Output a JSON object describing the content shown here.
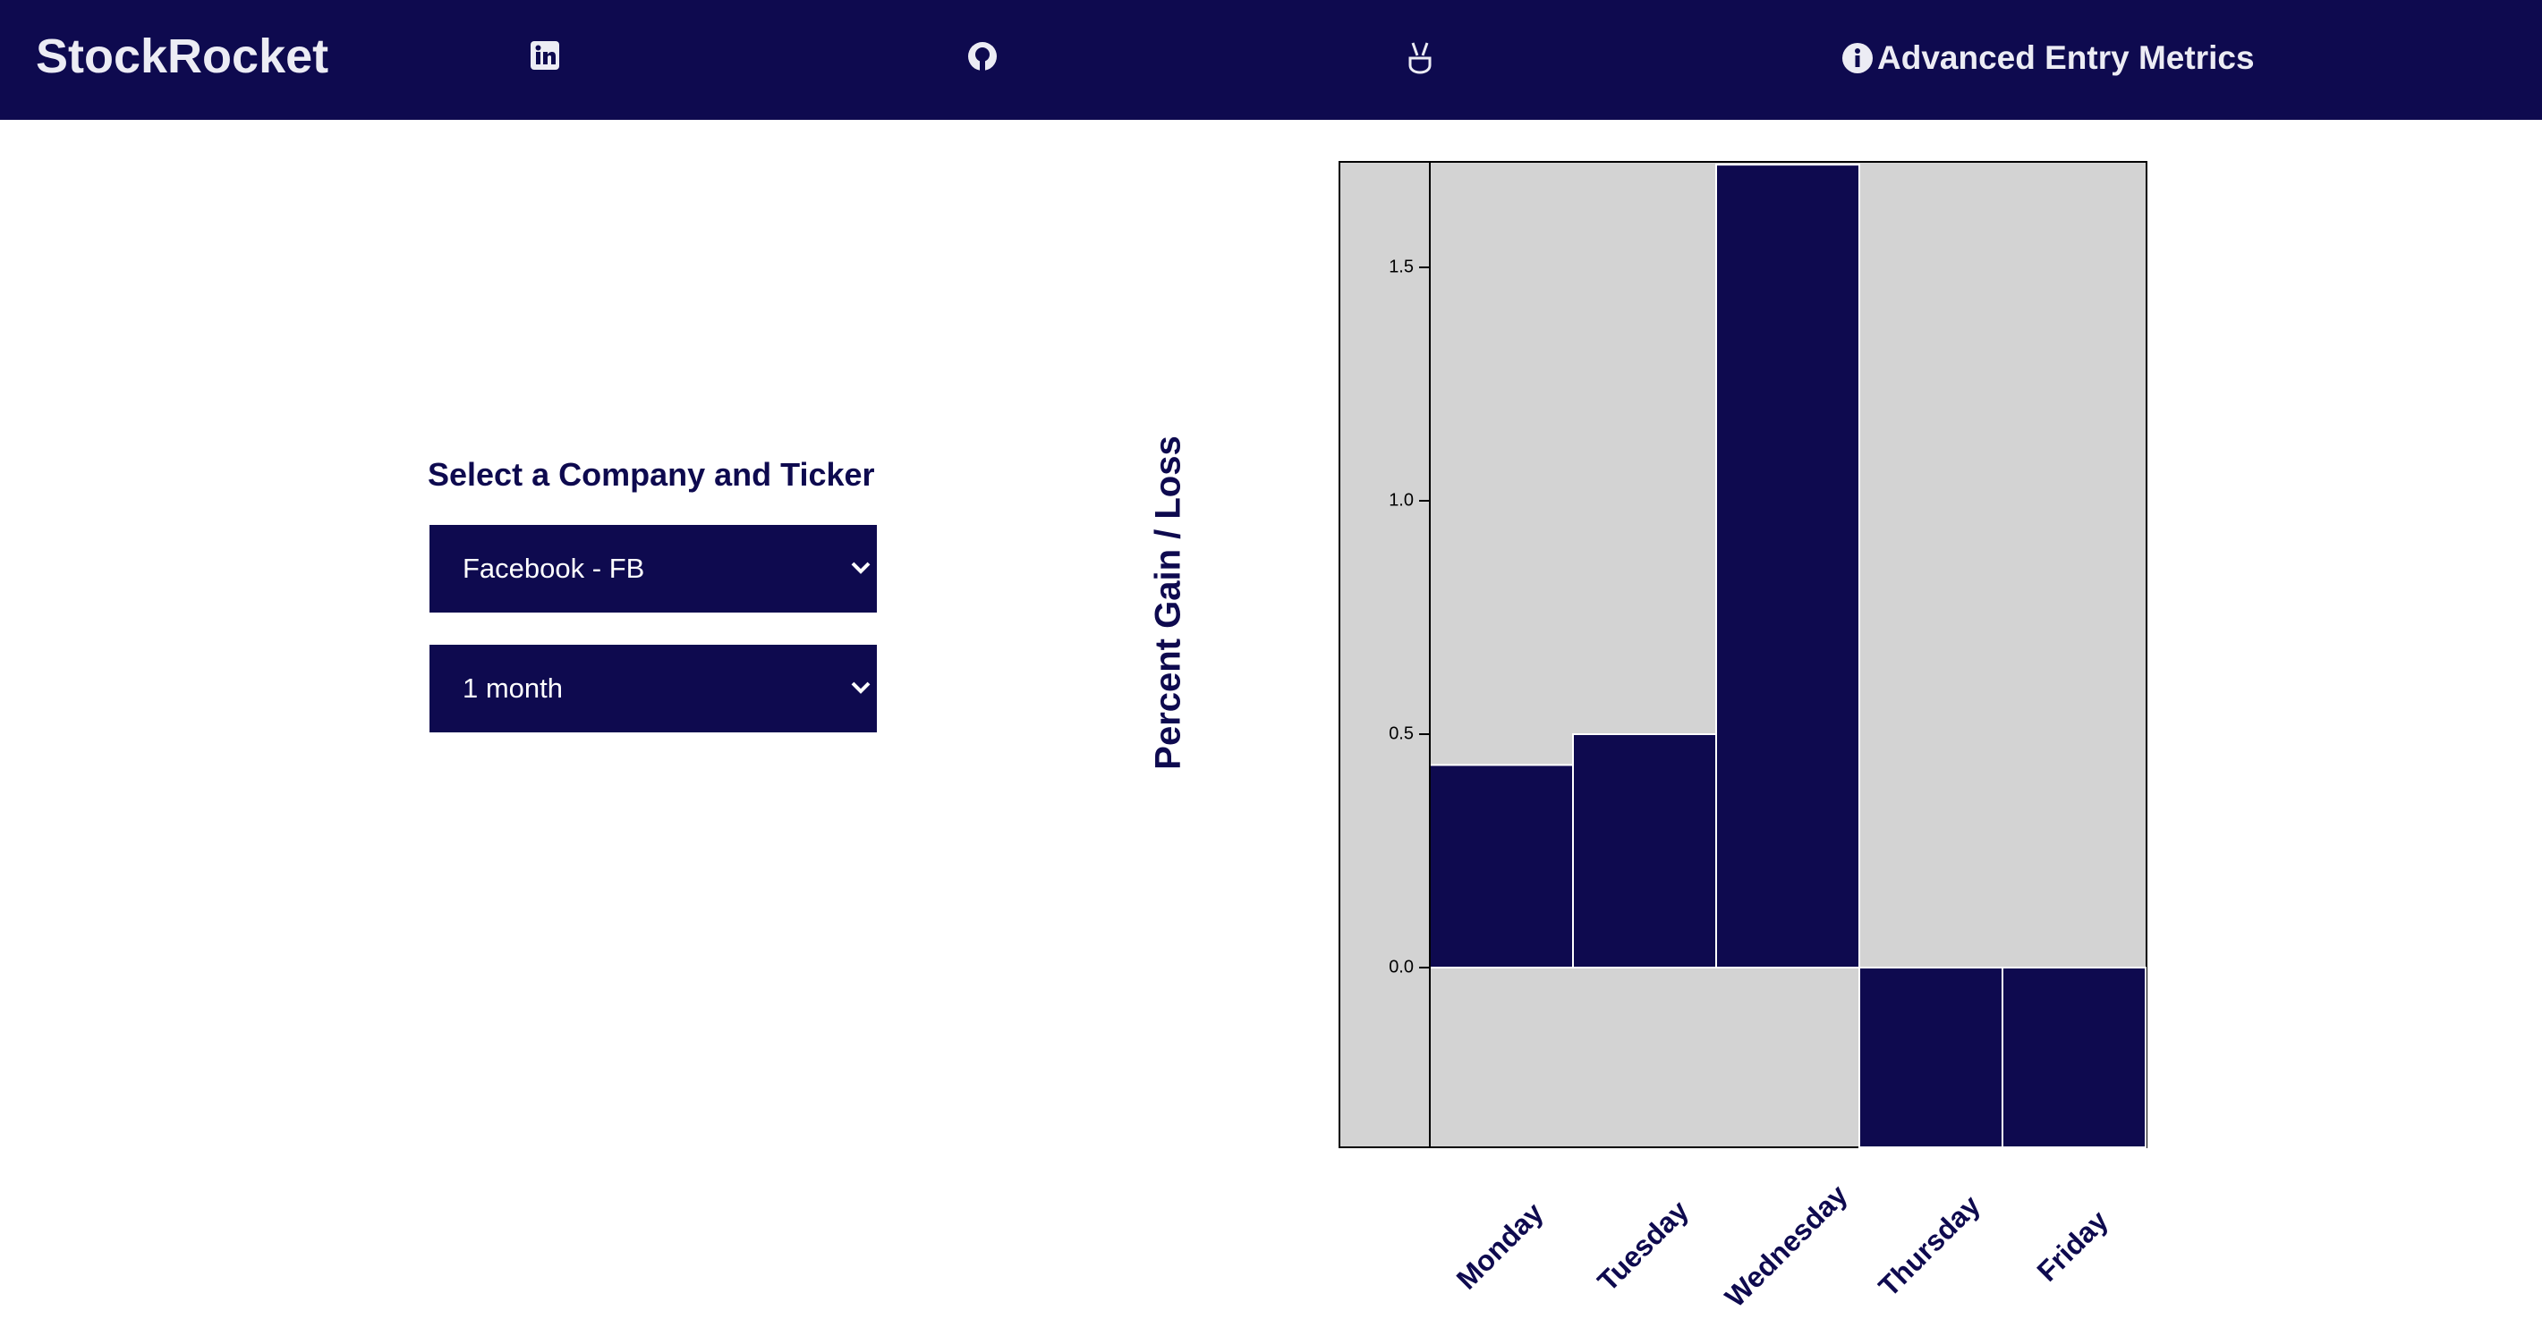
{
  "header": {
    "brand": "StockRocket",
    "menu_item": "Advanced Entry Metrics"
  },
  "form": {
    "heading": "Select a Company and Ticker",
    "company": "Facebook - FB",
    "period": "1 month"
  },
  "chart_data": {
    "type": "bar",
    "y_label": "Percent Gain / Loss",
    "categories": [
      "Monday",
      "Tuesday",
      "Wednesday",
      "Thursday",
      "Friday"
    ],
    "values": [
      0.434,
      0.5,
      1.72,
      -0.385,
      -0.385
    ],
    "color": "#0e0a4f",
    "ylim": [
      -0.385,
      1.726
    ],
    "yticks": [
      {
        "value": 0,
        "label": "0.0"
      },
      0.5,
      {
        "value": 1,
        "label": "1.0"
      },
      1.5
    ]
  }
}
